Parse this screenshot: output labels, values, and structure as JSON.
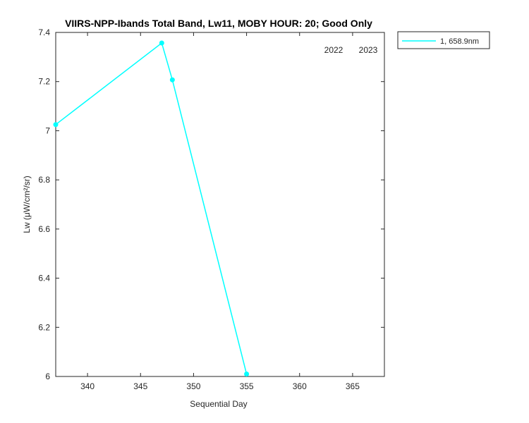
{
  "chart_data": {
    "type": "line",
    "title": "VIIRS-NPP-Ibands Total Band,  Lw11, MOBY HOUR: 20;  Good Only",
    "x_label": "Sequential Day",
    "y_label": "Lw (μW/cm²/sr)",
    "annotations": [
      "2022",
      "2023"
    ],
    "x": [
      337,
      347,
      348,
      355
    ],
    "series": [
      {
        "name": "1, 658.9nm",
        "color": "#00ffff",
        "values": [
          7.025,
          7.357,
          7.207,
          6.01
        ]
      }
    ],
    "xlim": [
      337,
      368
    ],
    "xticks": [
      340,
      345,
      350,
      355,
      360,
      365
    ],
    "ylim": [
      6,
      7.4
    ],
    "yticks": [
      6,
      6.2,
      6.4,
      6.6,
      6.8,
      7,
      7.2,
      7.4
    ],
    "legend": "outside-top-right",
    "grid": false
  }
}
